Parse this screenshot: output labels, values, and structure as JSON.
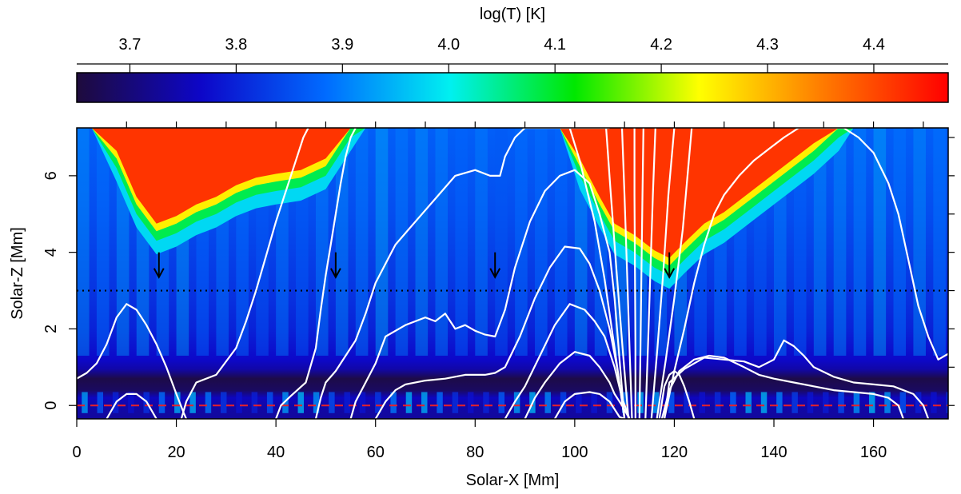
{
  "chart_data": [
    {
      "type": "colorbar",
      "title": "log(T) [K]",
      "range": [
        3.65,
        4.47
      ],
      "ticks": [
        "3.7",
        "3.8",
        "3.9",
        "4.0",
        "4.1",
        "4.2",
        "4.3",
        "4.4"
      ],
      "tick_values": [
        3.7,
        3.8,
        3.9,
        4.0,
        4.1,
        4.2,
        4.3,
        4.4
      ],
      "colormap": [
        "#1e0b3c",
        "#0d06c8",
        "#006bff",
        "#00f0f0",
        "#00e800",
        "#ffff00",
        "#ff7a00",
        "#ff0000"
      ],
      "placement": "top"
    },
    {
      "type": "heatmap",
      "xlabel": "Solar-X [Mm]",
      "ylabel": "Solar-Z [Mm]",
      "xlim": [
        0,
        175
      ],
      "ylim": [
        -0.35,
        7.25
      ],
      "xticks": [
        "0",
        "20",
        "40",
        "60",
        "80",
        "100",
        "120",
        "140",
        "160"
      ],
      "xtick_values": [
        0,
        20,
        40,
        60,
        80,
        100,
        120,
        140,
        160
      ],
      "yticks": [
        "0",
        "2",
        "4",
        "6"
      ],
      "ytick_values": [
        0,
        2,
        4,
        6
      ],
      "background_log_temperature": 3.9,
      "photosphere_log_temperature": 3.66,
      "hot_regions": [
        {
          "name": "loop-footpoint-left",
          "x": [
            3,
            8,
            12,
            16,
            20,
            24,
            28,
            32,
            36,
            40,
            45,
            50,
            55,
            58
          ],
          "z_bottom": [
            7.25,
            6.2,
            5.0,
            4.3,
            4.5,
            4.8,
            5.0,
            5.3,
            5.5,
            5.6,
            5.7,
            6.0,
            7.0,
            7.25
          ]
        },
        {
          "name": "loop-footpoint-right",
          "x": [
            97,
            101,
            105,
            108,
            112,
            116,
            119,
            122,
            126,
            130,
            136,
            142,
            148,
            153,
            156
          ],
          "z_bottom": [
            7.25,
            6.0,
            5.0,
            4.3,
            4.0,
            3.6,
            3.4,
            3.8,
            4.3,
            4.6,
            5.2,
            5.8,
            6.4,
            7.0,
            7.25
          ]
        }
      ],
      "reference_lines": [
        {
          "name": "tau-unity",
          "z": 0,
          "color": "#e8202a",
          "style": "dashed"
        },
        {
          "name": "chromosphere-level",
          "z": 3.0,
          "color": "#000000",
          "style": "dotted"
        }
      ],
      "arrows": [
        {
          "x": 16.5,
          "z_tip": 3.35,
          "z_tail": 4.0
        },
        {
          "x": 52,
          "z_tip": 3.35,
          "z_tail": 4.0
        },
        {
          "x": 84,
          "z_tip": 3.35,
          "z_tail": 4.0
        },
        {
          "x": 119,
          "z_tip": 3.35,
          "z_tail": 4.0
        }
      ],
      "field_lines": [
        {
          "x": [
            6,
            8,
            10,
            12,
            14,
            16
          ],
          "z": [
            -0.35,
            0.1,
            0.3,
            0.3,
            0.1,
            -0.35
          ]
        },
        {
          "x": [
            0,
            2,
            4,
            6,
            8,
            10,
            12,
            14,
            16,
            18,
            20,
            21.5,
            22
          ],
          "z": [
            0.7,
            0.85,
            1.1,
            1.6,
            2.3,
            2.65,
            2.5,
            2.1,
            1.6,
            1.0,
            0.3,
            -0.2,
            -0.35
          ]
        },
        {
          "x": [
            21,
            22,
            24,
            28,
            32,
            34,
            36,
            38,
            40,
            42,
            44,
            45.5,
            46.5
          ],
          "z": [
            -0.35,
            0.1,
            0.6,
            0.8,
            1.5,
            2.2,
            3.0,
            3.9,
            4.8,
            5.6,
            6.4,
            7.0,
            7.25
          ]
        },
        {
          "x": [
            40,
            41,
            43,
            46,
            48,
            49,
            50,
            51,
            52,
            53,
            54,
            55,
            56
          ],
          "z": [
            -0.35,
            0.0,
            0.25,
            0.6,
            1.5,
            2.5,
            3.4,
            4.2,
            5.0,
            5.8,
            6.5,
            7.0,
            7.25
          ]
        },
        {
          "x": [
            48,
            49,
            50,
            52,
            56,
            58,
            60,
            64,
            68,
            72,
            76,
            80,
            83,
            85,
            86,
            88,
            90,
            93,
            96,
            100,
            103,
            105,
            106,
            107
          ],
          "z": [
            -0.35,
            0.2,
            0.6,
            0.9,
            1.7,
            2.4,
            3.2,
            4.2,
            4.8,
            5.4,
            6.0,
            6.15,
            6.0,
            6.0,
            6.5,
            7.0,
            7.25,
            7.25,
            7.25,
            7.25,
            7.25,
            7.25,
            7.25,
            7.25
          ]
        },
        {
          "x": [
            55,
            56,
            58,
            60,
            62,
            66,
            70,
            72,
            74,
            76,
            78,
            80,
            82,
            84,
            86,
            88,
            91,
            94,
            97,
            100,
            103,
            105,
            107,
            108,
            109,
            110
          ],
          "z": [
            -0.35,
            0.1,
            0.6,
            1.1,
            1.8,
            2.1,
            2.3,
            2.2,
            2.4,
            2.0,
            2.1,
            1.95,
            1.85,
            1.8,
            2.5,
            3.6,
            4.8,
            5.6,
            6.0,
            6.15,
            5.8,
            5.0,
            4.0,
            2.8,
            1.2,
            -0.35
          ]
        },
        {
          "x": [
            60,
            62,
            64,
            66,
            70,
            74,
            78,
            82,
            84,
            86,
            89,
            92,
            95,
            98,
            101,
            103,
            105,
            107,
            108.5,
            110
          ],
          "z": [
            -0.35,
            0.1,
            0.4,
            0.55,
            0.65,
            0.7,
            0.8,
            0.8,
            0.85,
            1.0,
            1.8,
            2.8,
            3.6,
            4.15,
            4.1,
            3.7,
            3.0,
            2.0,
            1.0,
            -0.35
          ]
        },
        {
          "x": [
            86,
            88,
            90,
            93,
            96,
            99,
            102,
            104,
            106,
            108,
            109.5,
            111
          ],
          "z": [
            -0.35,
            0.1,
            0.5,
            1.3,
            2.1,
            2.65,
            2.5,
            2.2,
            1.8,
            1.0,
            0.2,
            -0.35
          ]
        },
        {
          "x": [
            90,
            92,
            94,
            97,
            100,
            103,
            105,
            107,
            108,
            109.5,
            111
          ],
          "z": [
            -0.35,
            0.2,
            0.6,
            1.1,
            1.4,
            1.3,
            1.0,
            0.6,
            0.3,
            0.0,
            -0.35
          ]
        },
        {
          "x": [
            96,
            98,
            100,
            103,
            105,
            107,
            108,
            109,
            110
          ],
          "z": [
            -0.35,
            0.1,
            0.3,
            0.35,
            0.3,
            0.1,
            -0.1,
            -0.3,
            -0.35
          ]
        },
        {
          "x": [
            110,
            108,
            106,
            104,
            101,
            99
          ],
          "z": [
            -0.35,
            1.5,
            3.3,
            4.8,
            6.4,
            7.25
          ]
        },
        {
          "x": [
            110.8,
            109.6,
            108.4,
            107.2,
            106.3
          ],
          "z": [
            -0.35,
            1.5,
            3.5,
            5.6,
            7.25
          ]
        },
        {
          "x": [
            111.5,
            111,
            110.5,
            110,
            109.5
          ],
          "z": [
            -0.35,
            1.5,
            3.5,
            5.5,
            7.25
          ]
        },
        {
          "x": [
            112.2,
            112.2,
            112.1,
            112.0,
            112.0
          ],
          "z": [
            -0.35,
            1.5,
            3.5,
            5.5,
            7.25
          ]
        },
        {
          "x": [
            113,
            113.2,
            113.4,
            113.6,
            113.8
          ],
          "z": [
            -0.35,
            1.5,
            3.5,
            5.5,
            7.25
          ]
        },
        {
          "x": [
            114.2,
            114.7,
            115.2,
            115.7,
            116.2
          ],
          "z": [
            -0.35,
            1.5,
            3.5,
            5.5,
            7.25
          ]
        },
        {
          "x": [
            115.4,
            116.6,
            117.8,
            118.8,
            120.0
          ],
          "z": [
            -0.35,
            1.5,
            3.5,
            5.5,
            7.25
          ]
        },
        {
          "x": [
            116.5,
            118.3,
            120.0,
            121.7,
            123.5
          ],
          "z": [
            -0.35,
            1.2,
            2.8,
            4.6,
            7.25
          ]
        },
        {
          "x": [
            117,
            118,
            119,
            120,
            121,
            122,
            123,
            124
          ],
          "z": [
            -0.35,
            0.5,
            0.8,
            0.9,
            0.8,
            0.5,
            0.1,
            -0.35
          ]
        },
        {
          "x": [
            117.5,
            119,
            121,
            124,
            127,
            130,
            134,
            137,
            140,
            144,
            148,
            152,
            156,
            160,
            163,
            165,
            166
          ],
          "z": [
            -0.35,
            0.4,
            0.9,
            1.2,
            1.3,
            1.25,
            1.0,
            0.8,
            0.7,
            0.6,
            0.5,
            0.4,
            0.35,
            0.3,
            0.2,
            0.0,
            -0.35
          ]
        },
        {
          "x": [
            118,
            119,
            122,
            126,
            130,
            134,
            137,
            140,
            142,
            144,
            146,
            148,
            152,
            156,
            160,
            164,
            168,
            170,
            171
          ],
          "z": [
            -0.35,
            0.6,
            0.95,
            1.25,
            1.2,
            1.15,
            1.0,
            1.2,
            1.7,
            1.55,
            1.3,
            1.0,
            0.75,
            0.6,
            0.55,
            0.5,
            0.3,
            0.0,
            -0.35
          ]
        },
        {
          "x": [
            118,
            120,
            122,
            124,
            126,
            128,
            130,
            133,
            136,
            139,
            142,
            145,
            148,
            151,
            154,
            157,
            160,
            163,
            165,
            167,
            169,
            171,
            173,
            175
          ],
          "z": [
            -0.35,
            0.9,
            2.0,
            3.2,
            4.2,
            5.0,
            5.5,
            6.0,
            6.4,
            6.7,
            7.0,
            7.25,
            7.25,
            7.25,
            7.25,
            7.0,
            6.6,
            5.8,
            5.0,
            3.8,
            2.6,
            1.8,
            1.2,
            1.35
          ]
        }
      ]
    }
  ]
}
